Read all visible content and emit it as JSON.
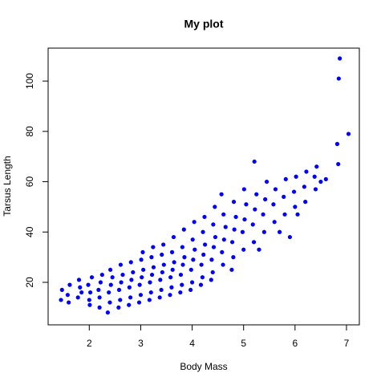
{
  "chart_data": {
    "type": "scatter",
    "title": "My plot",
    "xlabel": "Body Mass",
    "ylabel": "Tarsus Length",
    "color": "#0000ff",
    "xlim": [
      1.2,
      7.25
    ],
    "ylim": [
      3.1,
      113.1
    ],
    "xticks": [
      2,
      3,
      4,
      5,
      6,
      7
    ],
    "yticks": [
      20,
      40,
      60,
      80,
      100
    ],
    "x": [
      1.45,
      1.47,
      1.58,
      1.62,
      1.6,
      1.78,
      1.82,
      1.8,
      1.85,
      2.0,
      2.02,
      1.98,
      2.05,
      2.01,
      2.2,
      2.18,
      2.22,
      2.25,
      2.2,
      2.4,
      2.38,
      2.42,
      2.45,
      2.41,
      2.36,
      2.6,
      2.58,
      2.62,
      2.65,
      2.61,
      2.57,
      2.8,
      2.78,
      2.82,
      2.85,
      2.81,
      2.77,
      3.0,
      2.98,
      3.02,
      3.05,
      3.01,
      2.97,
      3.04,
      3.2,
      3.18,
      3.22,
      3.25,
      3.21,
      3.17,
      3.24,
      3.4,
      3.38,
      3.42,
      3.45,
      3.41,
      3.37,
      3.44,
      3.6,
      3.58,
      3.62,
      3.65,
      3.61,
      3.57,
      3.64,
      3.8,
      3.78,
      3.82,
      3.85,
      3.81,
      3.77,
      3.84,
      4.0,
      3.98,
      4.02,
      4.05,
      4.01,
      3.97,
      4.04,
      4.2,
      4.18,
      4.22,
      4.25,
      4.21,
      4.17,
      4.24,
      4.4,
      4.38,
      4.42,
      4.45,
      4.41,
      4.37,
      4.44,
      4.6,
      4.58,
      4.62,
      4.65,
      4.61,
      4.57,
      4.8,
      4.78,
      4.82,
      4.85,
      4.81,
      4.77,
      5.0,
      4.98,
      5.02,
      5.05,
      5.01,
      5.2,
      5.18,
      5.22,
      5.25,
      5.21,
      5.3,
      5.4,
      5.38,
      5.42,
      5.45,
      5.6,
      5.58,
      5.62,
      5.7,
      5.8,
      5.78,
      5.82,
      5.9,
      6.0,
      5.98,
      6.02,
      6.05,
      6.2,
      6.18,
      6.22,
      6.4,
      6.38,
      6.42,
      6.5,
      6.87,
      6.85,
      7.04,
      6.82,
      6.84,
      6.6
    ],
    "y": [
      13,
      17,
      15,
      19,
      12,
      14,
      18,
      21,
      16,
      13,
      16,
      19,
      22,
      11,
      14,
      17,
      20,
      23,
      10,
      12,
      16,
      19,
      22,
      25,
      8,
      13,
      17,
      20,
      23,
      27,
      10,
      14,
      18,
      21,
      24,
      28,
      11,
      15,
      19,
      22,
      25,
      29,
      12,
      32,
      16,
      20,
      23,
      26,
      30,
      13,
      34,
      17,
      21,
      24,
      27,
      31,
      14,
      35,
      18,
      22,
      25,
      28,
      32,
      15,
      38,
      19,
      23,
      27,
      30,
      34,
      16,
      41,
      20,
      25,
      29,
      33,
      37,
      17,
      44,
      22,
      27,
      31,
      35,
      40,
      19,
      46,
      24,
      29,
      34,
      38,
      43,
      21,
      50,
      27,
      32,
      37,
      42,
      47,
      55,
      30,
      36,
      41,
      46,
      52,
      25,
      33,
      40,
      45,
      51,
      57,
      36,
      43,
      49,
      55,
      68,
      33,
      40,
      47,
      53,
      60,
      44,
      51,
      57,
      40,
      47,
      54,
      61,
      38,
      50,
      56,
      62,
      47,
      52,
      58,
      64,
      57,
      62,
      66,
      60,
      109,
      101,
      79,
      75,
      67,
      61
    ]
  }
}
